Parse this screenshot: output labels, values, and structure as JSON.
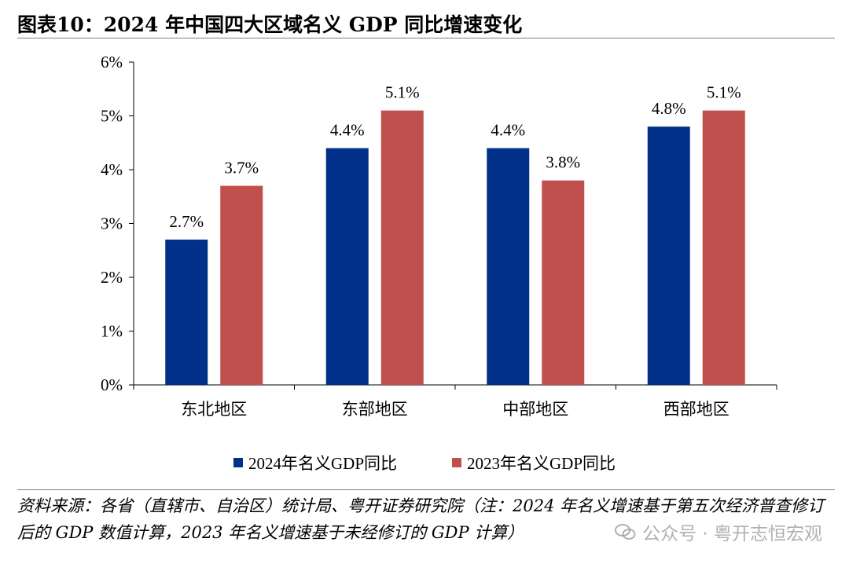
{
  "title": "图表10：2024 年中国四大区域名义 GDP 同比增速变化",
  "chart_data": {
    "type": "bar",
    "categories": [
      "东北地区",
      "东部地区",
      "中部地区",
      "西部地区"
    ],
    "series": [
      {
        "name": "2024年名义GDP同比",
        "values": [
          2.7,
          4.4,
          4.4,
          4.8
        ],
        "labels": [
          "2.7%",
          "4.4%",
          "4.4%",
          "4.8%"
        ],
        "color": "#003087"
      },
      {
        "name": "2023年名义GDP同比",
        "values": [
          3.7,
          5.1,
          3.8,
          5.1
        ],
        "labels": [
          "3.7%",
          "5.1%",
          "3.8%",
          "5.1%"
        ],
        "color": "#C0504D"
      }
    ],
    "ylim": [
      0,
      6
    ],
    "yticks": [
      "0%",
      "1%",
      "2%",
      "3%",
      "4%",
      "5%",
      "6%"
    ],
    "ylabel": "",
    "xlabel": "",
    "legend_position": "bottom"
  },
  "legend": {
    "item_2024": "2024年名义GDP同比",
    "item_2023": "2023年名义GDP同比"
  },
  "source": "资料来源：各省（直辖市、自治区）统计局、粤开证券研究院（注：2024 年名义增速基于第五次经济普查修订后的 GDP 数值计算，2023 年名义增速基于未经修订的 GDP 计算）",
  "watermark": {
    "text": "公众号 · 粤开志恒宏观",
    "icon": "wechat-icon"
  }
}
